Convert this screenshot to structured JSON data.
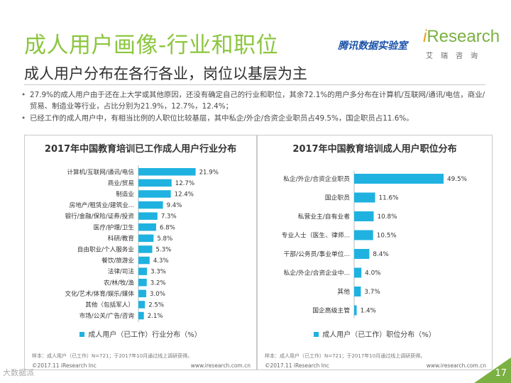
{
  "header": {
    "title": "成人用户画像-行业和职位",
    "subtitle": "成人用户分布在各行各业，岗位以基层为主",
    "logo_tencent": "腾讯数据实验室",
    "logo_ir_i": "i",
    "logo_ir_rest": "Research",
    "logo_ir_sub": "艾瑞咨询"
  },
  "bullets": [
    "27.9%的成人用户由于还在上大学或其他原因，还没有确定自己的行业和职位，其余72.1%的用户多分布在计算机/互联网/通讯/电信，商业/贸易、制造业等行业，占比分别为21.9%，12.7%，12.4%；",
    "已经工作的成人用户中，有相当比例的人职位比较基层，其中私企/外企/合资企业职员占49.5%，国企职员占11.6%。"
  ],
  "left_panel": {
    "legend": "成人用户（已工作）行业分布（%）",
    "source": "样本：成人用户（已工作）N=721；于2017年10月通过线上调研获得。",
    "footer_left": "©2017.11 iResearch Inc",
    "footer_right": "www.iresearch.com.cn"
  },
  "right_panel": {
    "legend": "成人用户（已工作）职位分布（%）",
    "source": "样本：成人用户（已工作）N=721；于2017年10月通过线上调研获得。",
    "footer_left": "©2017.11 iResearch Inc",
    "footer_right": "www.iresearch.com.cn"
  },
  "page_number": "17",
  "watermark": "大数据派",
  "chart_data": [
    {
      "type": "bar",
      "orientation": "horizontal",
      "title": "2017年中国教育培训已工作成人用户行业分布",
      "categories": [
        "计算机/互联网/通讯/电信",
        "商业/贸易",
        "制造业",
        "房地产/租赁业/建筑业...",
        "银行/金融/保险/证券/投资",
        "医疗/护理/卫生",
        "科研/教育",
        "自由职业/个人服务业",
        "餐饮/旅游业",
        "法律/司法",
        "农/林/牧/渔",
        "文化/艺术/体育/娱乐/媒体",
        "其他（包括军人）",
        "市场/公关/广告/咨询"
      ],
      "values": [
        21.9,
        12.7,
        12.4,
        9.4,
        7.3,
        6.8,
        5.8,
        5.3,
        4.3,
        3.3,
        3.2,
        3.0,
        2.5,
        2.1
      ],
      "value_labels": [
        "21.9%",
        "12.7%",
        "12.4%",
        "9.4%",
        "7.3%",
        "6.8%",
        "5.8%",
        "5.3%",
        "4.3%",
        "3.3%",
        "3.2%",
        "3.0%",
        "2.5%",
        "2.1%"
      ],
      "series_name": "成人用户（已工作）行业分布（%）",
      "xlim": [
        0,
        25
      ],
      "color": "#1fb2e0"
    },
    {
      "type": "bar",
      "orientation": "horizontal",
      "title": "2017年中国教育培训成人用户职位分布",
      "categories": [
        "私企/外企/合资企业职员",
        "国企职员",
        "私营业主/自有业者",
        "专业人士（医生、律师...",
        "干部/公务员/事业单位...",
        "私企/外企/合资企业中...",
        "其他",
        "国企高级主管"
      ],
      "values": [
        49.5,
        11.6,
        10.8,
        10.5,
        8.4,
        4.0,
        3.7,
        1.4
      ],
      "value_labels": [
        "49.5%",
        "11.6%",
        "10.8%",
        "10.5%",
        "8.4%",
        "4.0%",
        "3.7%",
        "1.4%"
      ],
      "series_name": "成人用户（已工作）职位分布（%）",
      "xlim": [
        0,
        55
      ],
      "color": "#1fb2e0"
    }
  ]
}
